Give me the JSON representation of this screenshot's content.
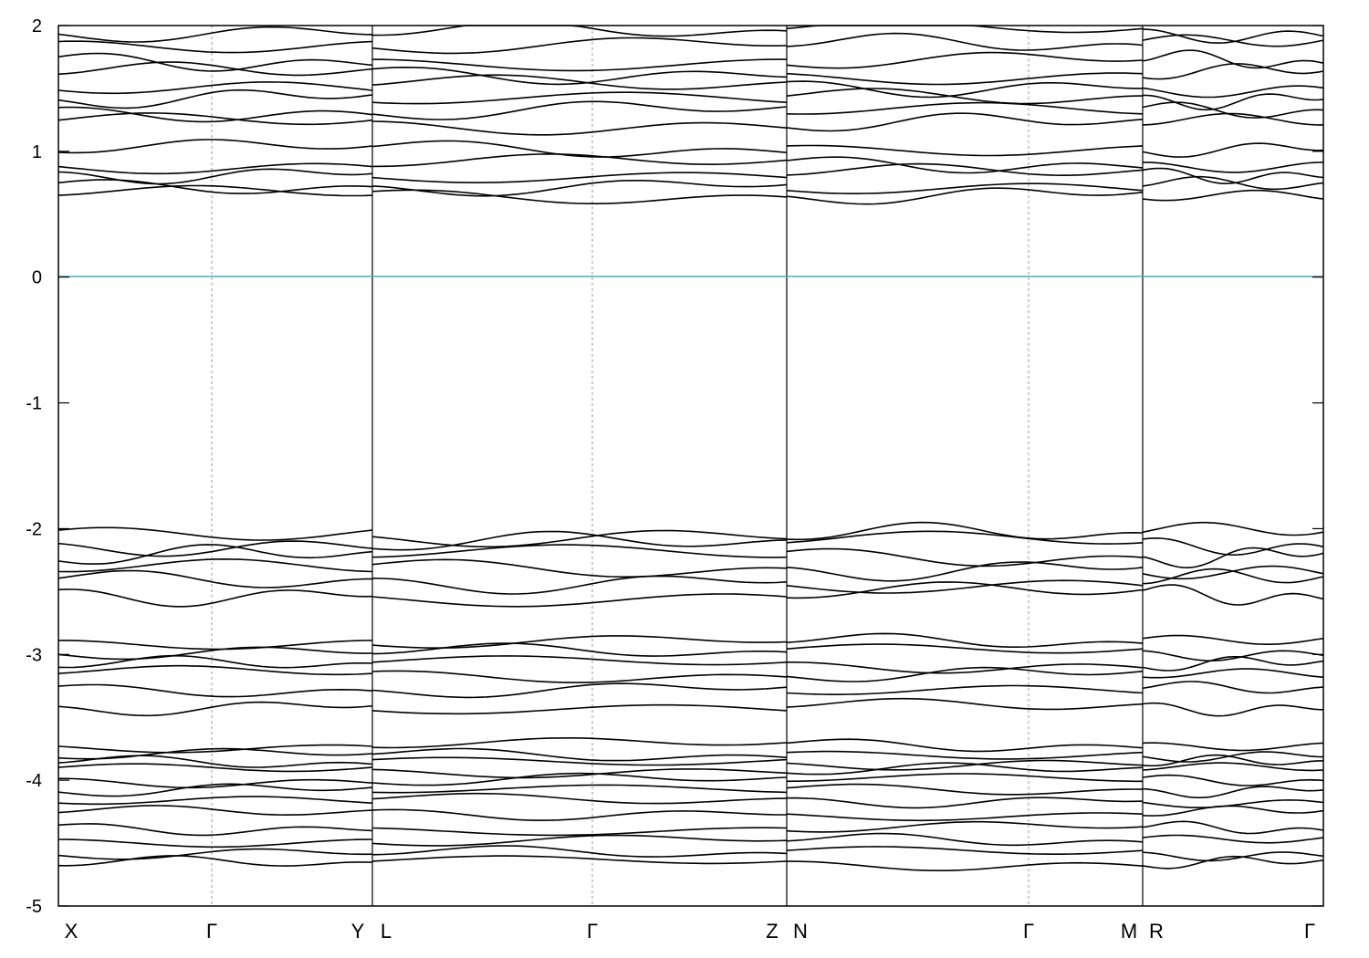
{
  "chart_data": {
    "type": "line",
    "title": "",
    "xlabel": "",
    "ylabel": "",
    "ylim": [
      -5,
      2
    ],
    "yticks": [
      -5,
      -4,
      -3,
      -2,
      -1,
      0,
      1,
      2
    ],
    "grid": "vertical dashed lines at high-symmetry points",
    "fermi_level": {
      "value": 0,
      "color": "#4fa8c8"
    },
    "line_color": "#000000",
    "segments": [
      {
        "from": "X",
        "to": "Γ",
        "split": true
      },
      {
        "from": "Γ",
        "to": "Y"
      },
      {
        "from": "L",
        "to": "Γ"
      },
      {
        "from": "Γ",
        "to": "Z"
      },
      {
        "from": "N",
        "to": "Γ"
      },
      {
        "from": "Γ",
        "to": "M"
      },
      {
        "from": "R",
        "to": "Γ"
      }
    ],
    "kpoints": [
      "X",
      "Γ",
      "Y",
      "L",
      "Γ",
      "Z",
      "N",
      "Γ",
      "M",
      "R",
      "Γ"
    ],
    "series": [
      {
        "x": [
          0,
          0.5,
          1,
          1.5,
          2,
          2.5,
          3,
          3.5,
          4,
          4.5,
          5,
          5.5,
          6,
          6.5,
          7
        ],
        "values": [
          0.78,
          0.72,
          0.68,
          0.67,
          0.67,
          0.55,
          0.62,
          0.68,
          0.66,
          0.6,
          0.65,
          0.72,
          0.68,
          0.78,
          0.68
        ]
      },
      {
        "x": [
          0,
          0.5,
          1,
          1.5,
          2,
          2.5,
          3,
          3.5,
          4,
          4.5,
          5,
          5.5,
          6,
          6.5,
          7
        ],
        "values": [
          0.9,
          0.88,
          0.9,
          0.85,
          0.8,
          1.05,
          0.88,
          0.9,
          0.85,
          0.98,
          0.9,
          0.92,
          0.96,
          0.92,
          0.9
        ]
      },
      {
        "x": [
          0,
          0.5,
          1,
          1.5,
          2,
          2.5,
          3,
          3.5,
          4,
          4.5,
          5,
          5.5,
          6,
          6.5,
          7
        ],
        "values": [
          -2.05,
          -2.1,
          -2.2,
          -2.15,
          -2.02,
          -2.25,
          -2.12,
          -2.1,
          -2.02,
          -2.25,
          -2.12,
          -2.18,
          -2.1,
          -2.14,
          -2.08
        ]
      },
      {
        "x": [
          0,
          0.5,
          1,
          1.5,
          2,
          2.5,
          3,
          3.5,
          4,
          4.5,
          5,
          5.5,
          6,
          6.5,
          7
        ],
        "values": [
          -2.85,
          -2.95,
          -2.88,
          -2.95,
          -3.0,
          -2.98,
          -2.88,
          -2.95,
          -2.92,
          -2.95,
          -2.88,
          -2.95,
          -2.9,
          -2.95,
          -2.88
        ]
      },
      {
        "x": [
          0,
          0.5,
          1,
          1.5,
          2,
          2.5,
          3,
          3.5,
          4,
          4.5,
          5,
          5.5,
          6,
          6.5,
          7
        ],
        "values": [
          -3.78,
          -3.7,
          -3.68,
          -3.7,
          -3.7,
          -3.78,
          -3.68,
          -3.68,
          -3.7,
          -3.75,
          -3.7,
          -3.78,
          -3.75,
          -3.7,
          -3.68
        ]
      },
      {
        "x": [
          0,
          0.5,
          1,
          1.5,
          2,
          2.5,
          3,
          3.5,
          4,
          4.5,
          5,
          5.5,
          6,
          6.5,
          7
        ],
        "values": [
          -4.62,
          -4.64,
          -4.65,
          -4.7,
          -4.75,
          -4.55,
          -4.64,
          -4.68,
          -4.7,
          -4.55,
          -4.65,
          -4.64,
          -4.62,
          -4.64,
          -4.62
        ]
      }
    ]
  },
  "axis": {
    "y_labels": [
      "-5",
      "-4",
      "-3",
      "-2",
      "-1",
      "0",
      "1",
      "2"
    ],
    "k_labels": [
      "X",
      "Γ",
      "Y",
      "L",
      "Γ",
      "Z",
      "N",
      "Γ",
      "M",
      "R",
      "Γ"
    ]
  }
}
